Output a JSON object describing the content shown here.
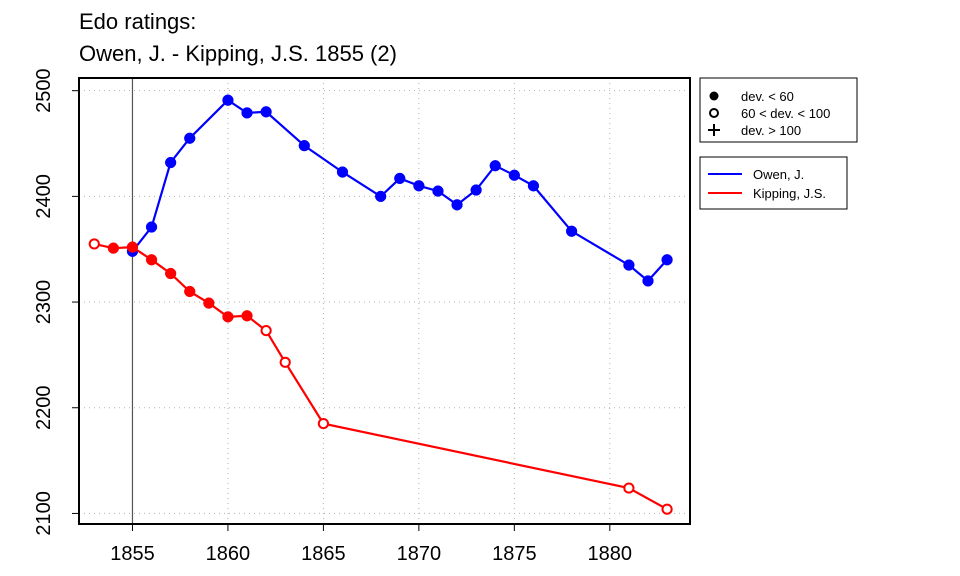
{
  "chart_data": {
    "type": "line",
    "title_line1": "Edo ratings:",
    "title_line2": "Owen, J. - Kipping, J.S. 1855 (2)",
    "xlabel": "",
    "ylabel": "",
    "xlim": [
      1852.2,
      1884.2
    ],
    "ylim": [
      2090,
      2512
    ],
    "x_ticks": [
      1855,
      1860,
      1865,
      1870,
      1875,
      1880
    ],
    "y_ticks": [
      2100,
      2200,
      2300,
      2400,
      2500
    ],
    "grid": true,
    "vertical_marker": 1855,
    "symbol_legend": [
      {
        "symbol": "filled-circle",
        "label": "dev. < 60"
      },
      {
        "symbol": "open-circle",
        "label": "60 < dev. < 100"
      },
      {
        "symbol": "plus",
        "label": "dev. > 100"
      }
    ],
    "series": [
      {
        "name": "Owen, J.",
        "color": "#0000ff",
        "points": [
          {
            "x": 1855,
            "y": 2348,
            "marker": "filled"
          },
          {
            "x": 1856,
            "y": 2371,
            "marker": "filled"
          },
          {
            "x": 1857,
            "y": 2432,
            "marker": "filled"
          },
          {
            "x": 1858,
            "y": 2455,
            "marker": "filled"
          },
          {
            "x": 1860,
            "y": 2491,
            "marker": "filled"
          },
          {
            "x": 1861,
            "y": 2479,
            "marker": "filled"
          },
          {
            "x": 1862,
            "y": 2480,
            "marker": "filled"
          },
          {
            "x": 1864,
            "y": 2448,
            "marker": "filled"
          },
          {
            "x": 1866,
            "y": 2423,
            "marker": "filled"
          },
          {
            "x": 1868,
            "y": 2400,
            "marker": "filled"
          },
          {
            "x": 1869,
            "y": 2417,
            "marker": "filled"
          },
          {
            "x": 1870,
            "y": 2410,
            "marker": "filled"
          },
          {
            "x": 1871,
            "y": 2405,
            "marker": "filled"
          },
          {
            "x": 1872,
            "y": 2392,
            "marker": "filled"
          },
          {
            "x": 1873,
            "y": 2406,
            "marker": "filled"
          },
          {
            "x": 1874,
            "y": 2429,
            "marker": "filled"
          },
          {
            "x": 1875,
            "y": 2420,
            "marker": "filled"
          },
          {
            "x": 1876,
            "y": 2410,
            "marker": "filled"
          },
          {
            "x": 1878,
            "y": 2367,
            "marker": "filled"
          },
          {
            "x": 1881,
            "y": 2335,
            "marker": "filled"
          },
          {
            "x": 1882,
            "y": 2320,
            "marker": "filled"
          },
          {
            "x": 1883,
            "y": 2340,
            "marker": "filled"
          }
        ]
      },
      {
        "name": "Kipping, J.S.",
        "color": "#ff0000",
        "points": [
          {
            "x": 1853,
            "y": 2355,
            "marker": "open"
          },
          {
            "x": 1854,
            "y": 2351,
            "marker": "filled"
          },
          {
            "x": 1855,
            "y": 2352,
            "marker": "filled"
          },
          {
            "x": 1856,
            "y": 2340,
            "marker": "filled"
          },
          {
            "x": 1857,
            "y": 2327,
            "marker": "filled"
          },
          {
            "x": 1858,
            "y": 2310,
            "marker": "filled"
          },
          {
            "x": 1859,
            "y": 2299,
            "marker": "filled"
          },
          {
            "x": 1860,
            "y": 2286,
            "marker": "filled"
          },
          {
            "x": 1861,
            "y": 2287,
            "marker": "filled"
          },
          {
            "x": 1862,
            "y": 2273,
            "marker": "open"
          },
          {
            "x": 1863,
            "y": 2243,
            "marker": "open"
          },
          {
            "x": 1865,
            "y": 2185,
            "marker": "open"
          },
          {
            "x": 1881,
            "y": 2124,
            "marker": "open"
          },
          {
            "x": 1883,
            "y": 2104,
            "marker": "open"
          }
        ]
      }
    ]
  }
}
